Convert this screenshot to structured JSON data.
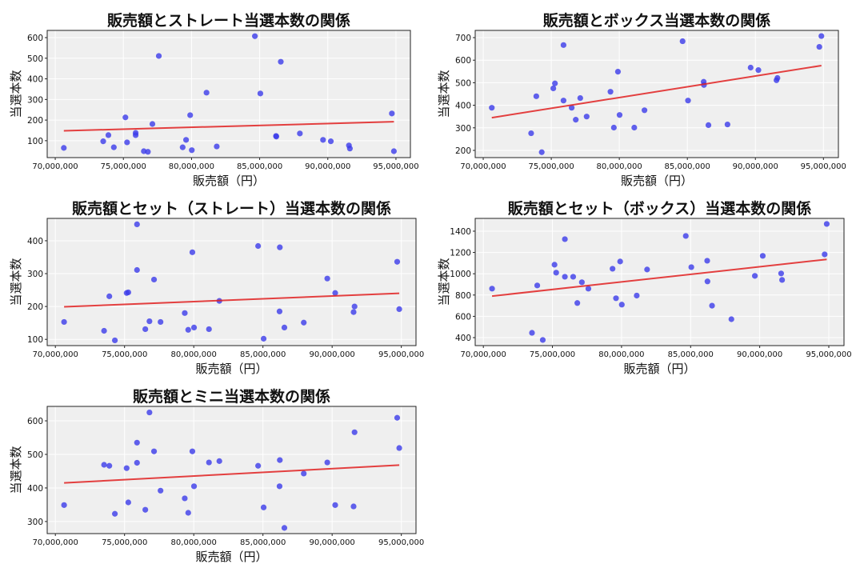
{
  "chart_data": [
    {
      "type": "scatter",
      "title": "販売額とストレート当選本数の関係",
      "xlabel": "販売額（円）",
      "ylabel": "当選本数",
      "xlim": [
        69410000,
        96060000
      ],
      "ylim": [
        18,
        635
      ],
      "xticks": [
        70000000,
        75000000,
        80000000,
        85000000,
        90000000,
        95000000
      ],
      "yticks": [
        100,
        200,
        300,
        400,
        500,
        600
      ],
      "grid": true,
      "x": [
        70630000,
        73520000,
        73900000,
        74300000,
        75150000,
        75270000,
        75900000,
        75900000,
        76500000,
        76800000,
        77130000,
        77600000,
        79350000,
        79600000,
        79900000,
        80020000,
        81100000,
        81850000,
        84650000,
        85050000,
        86200000,
        86220000,
        86550000,
        87950000,
        89650000,
        90220000,
        91550000,
        91620000,
        94700000,
        94850000
      ],
      "y": [
        65,
        97,
        127,
        68,
        213,
        92,
        138,
        127,
        49,
        46,
        181,
        511,
        68,
        104,
        224,
        54,
        333,
        72,
        607,
        329,
        123,
        120,
        483,
        135,
        104,
        97,
        77,
        62,
        232,
        49
      ],
      "trend": {
        "x": [
          70630000,
          94850000
        ],
        "y": [
          148,
          192
        ]
      }
    },
    {
      "type": "scatter",
      "title": "販売額とボックス当選本数の関係",
      "xlabel": "販売額（円）",
      "ylabel": "当選本数",
      "xlim": [
        69410000,
        96100000
      ],
      "ylim": [
        168,
        732
      ],
      "xticks": [
        70000000,
        75000000,
        80000000,
        85000000,
        90000000,
        95000000
      ],
      "yticks": [
        200,
        300,
        400,
        500,
        600,
        700
      ],
      "grid": true,
      "x": [
        70630000,
        73520000,
        73900000,
        74300000,
        75150000,
        75270000,
        75900000,
        75900000,
        76500000,
        76800000,
        77130000,
        77600000,
        79350000,
        79600000,
        79900000,
        80020000,
        81100000,
        81850000,
        84650000,
        85050000,
        86200000,
        86220000,
        86550000,
        87950000,
        89650000,
        90220000,
        91550000,
        91620000,
        94700000,
        94850000
      ],
      "y": [
        389,
        276,
        440,
        192,
        475,
        497,
        667,
        421,
        389,
        336,
        432,
        350,
        460,
        301,
        549,
        357,
        301,
        378,
        684,
        421,
        504,
        490,
        312,
        315,
        567,
        556,
        511,
        521,
        659,
        707
      ],
      "trend": {
        "x": [
          70630000,
          94850000
        ],
        "y": [
          345,
          576
        ]
      }
    },
    {
      "type": "scatter",
      "title": "販売額とセット（ストレート）当選本数の関係",
      "xlabel": "販売額（円）",
      "ylabel": "当選本数",
      "xlim": [
        69410000,
        96060000
      ],
      "ylim": [
        81,
        468
      ],
      "xticks": [
        70000000,
        75000000,
        80000000,
        85000000,
        90000000,
        95000000
      ],
      "yticks": [
        100,
        200,
        300,
        400
      ],
      "grid": true,
      "x": [
        70630000,
        73520000,
        73900000,
        74300000,
        75150000,
        75270000,
        75900000,
        75900000,
        76500000,
        76800000,
        77130000,
        77600000,
        79350000,
        79600000,
        79900000,
        80020000,
        81100000,
        81850000,
        84650000,
        85050000,
        86200000,
        86220000,
        86550000,
        87950000,
        89650000,
        90220000,
        91550000,
        91620000,
        94700000,
        94850000
      ],
      "y": [
        153,
        126,
        231,
        97,
        241,
        243,
        450,
        311,
        131,
        155,
        282,
        153,
        180,
        129,
        365,
        136,
        131,
        217,
        384,
        102,
        185,
        380,
        136,
        151,
        285,
        241,
        183,
        200,
        336,
        192
      ],
      "trend": {
        "x": [
          70630000,
          94850000
        ],
        "y": [
          199,
          240
        ]
      }
    },
    {
      "type": "scatter",
      "title": "販売額とセット（ボックス）当選本数の関係",
      "xlabel": "販売額（円）",
      "ylabel": "当選本数",
      "xlim": [
        69410000,
        96100000
      ],
      "ylim": [
        325,
        1520
      ],
      "xticks": [
        70000000,
        75000000,
        80000000,
        85000000,
        90000000,
        95000000
      ],
      "yticks": [
        400,
        600,
        800,
        1000,
        1200,
        1400
      ],
      "grid": true,
      "x": [
        70630000,
        73520000,
        73900000,
        74300000,
        75150000,
        75270000,
        75900000,
        75900000,
        76500000,
        76800000,
        77130000,
        77600000,
        79350000,
        79600000,
        79900000,
        80020000,
        81100000,
        81850000,
        84650000,
        85050000,
        86200000,
        86220000,
        86550000,
        87950000,
        89650000,
        90220000,
        91550000,
        91620000,
        94700000,
        94850000
      ],
      "y": [
        860,
        445,
        890,
        378,
        1085,
        1010,
        1325,
        972,
        972,
        725,
        920,
        860,
        1047,
        770,
        1115,
        710,
        795,
        1040,
        1355,
        1062,
        1122,
        928,
        700,
        573,
        980,
        1168,
        1003,
        942,
        1182,
        1468
      ],
      "trend": {
        "x": [
          70630000,
          94850000
        ],
        "y": [
          790,
          1135
        ]
      }
    },
    {
      "type": "scatter",
      "title": "販売額とミニ当選本数の関係",
      "xlabel": "販売額（円）",
      "ylabel": "当選本数",
      "xlim": [
        69410000,
        96060000
      ],
      "ylim": [
        264,
        643
      ],
      "xticks": [
        70000000,
        75000000,
        80000000,
        85000000,
        90000000,
        95000000
      ],
      "yticks": [
        300,
        400,
        500,
        600
      ],
      "grid": true,
      "x": [
        70630000,
        73520000,
        73900000,
        74300000,
        75150000,
        75270000,
        75900000,
        75900000,
        76500000,
        76800000,
        77130000,
        77600000,
        79350000,
        79600000,
        79900000,
        80020000,
        81100000,
        81850000,
        84650000,
        85050000,
        86200000,
        86220000,
        86550000,
        87950000,
        89650000,
        90220000,
        91550000,
        91620000,
        94700000,
        94850000
      ],
      "y": [
        349,
        469,
        466,
        323,
        459,
        357,
        535,
        475,
        335,
        625,
        509,
        392,
        369,
        326,
        509,
        405,
        476,
        480,
        466,
        342,
        405,
        483,
        281,
        443,
        476,
        349,
        345,
        566,
        609,
        519
      ],
      "trend": {
        "x": [
          70630000,
          94850000
        ],
        "y": [
          415,
          468
        ]
      }
    }
  ],
  "colors": {
    "point": "#3b3bea",
    "trend": "#e02020",
    "plot_bg": "#efefef",
    "grid": "#ffffff"
  }
}
